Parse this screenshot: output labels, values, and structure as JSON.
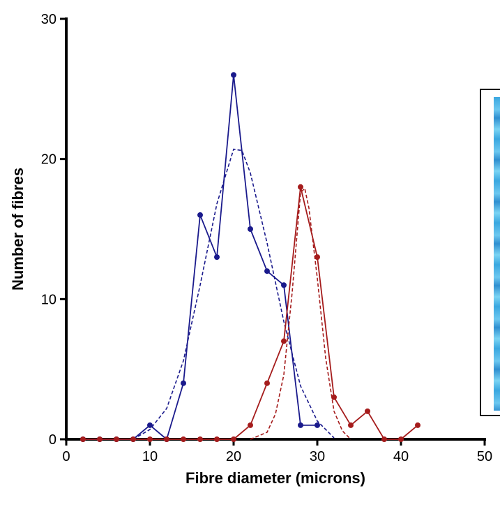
{
  "chart_data": {
    "type": "line",
    "title": "",
    "xlabel": "Fibre diameter (microns)",
    "ylabel": "Number of fibres",
    "xlim": [
      0,
      50
    ],
    "ylim": [
      0,
      30
    ],
    "x_ticks": [
      "0",
      "10",
      "20",
      "30",
      "40",
      "50"
    ],
    "y_ticks": [
      "0",
      "10",
      "20",
      "30"
    ],
    "grid": false,
    "legend": "none",
    "series": [
      {
        "color": "#1a1a8c",
        "style": "solid-with-markers",
        "points": [
          [
            2,
            0
          ],
          [
            4,
            0
          ],
          [
            6,
            0
          ],
          [
            8,
            0
          ],
          [
            10,
            1
          ],
          [
            12,
            0
          ],
          [
            14,
            4
          ],
          [
            16,
            16
          ],
          [
            18,
            13
          ],
          [
            20,
            26
          ],
          [
            22,
            15
          ],
          [
            24,
            12
          ],
          [
            26,
            11
          ],
          [
            28,
            1
          ],
          [
            30,
            1
          ]
        ]
      },
      {
        "color": "#1a1a8c",
        "style": "dashed-fit",
        "points": [
          [
            8,
            0
          ],
          [
            10,
            0.7
          ],
          [
            12,
            2.2
          ],
          [
            14,
            5.6
          ],
          [
            16,
            11.0
          ],
          [
            18,
            16.8
          ],
          [
            20,
            20.7
          ],
          [
            21,
            20.6
          ],
          [
            22,
            19.0
          ],
          [
            24,
            14.0
          ],
          [
            26,
            8.4
          ],
          [
            28,
            3.8
          ],
          [
            30,
            1.3
          ],
          [
            32,
            0.1
          ]
        ]
      },
      {
        "color": "#a51c1c",
        "style": "solid-with-markers",
        "points": [
          [
            2,
            0
          ],
          [
            4,
            0
          ],
          [
            6,
            0
          ],
          [
            8,
            0
          ],
          [
            10,
            0
          ],
          [
            12,
            0
          ],
          [
            14,
            0
          ],
          [
            16,
            0
          ],
          [
            18,
            0
          ],
          [
            20,
            0
          ],
          [
            22,
            1
          ],
          [
            24,
            4
          ],
          [
            26,
            7
          ],
          [
            28,
            18
          ],
          [
            30,
            13
          ],
          [
            32,
            3
          ],
          [
            34,
            1
          ],
          [
            36,
            2
          ],
          [
            38,
            0
          ],
          [
            40,
            0
          ],
          [
            42,
            1
          ]
        ]
      },
      {
        "color": "#a51c1c",
        "style": "dashed-fit",
        "points": [
          [
            22,
            0
          ],
          [
            24,
            0.5
          ],
          [
            25,
            1.8
          ],
          [
            26,
            4.6
          ],
          [
            27,
            10.5
          ],
          [
            28,
            17.6
          ],
          [
            28.5,
            17.9
          ],
          [
            29,
            16.5
          ],
          [
            30,
            11.5
          ],
          [
            31,
            5.8
          ],
          [
            32,
            2.0
          ],
          [
            33,
            0.6
          ],
          [
            34,
            0
          ]
        ]
      }
    ]
  }
}
